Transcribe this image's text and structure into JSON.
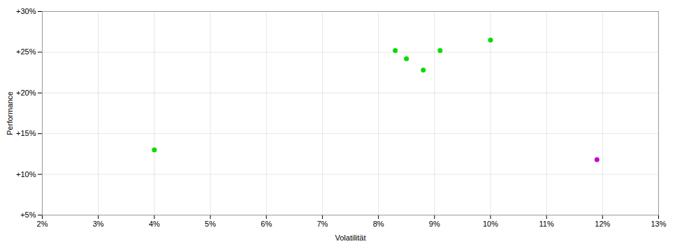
{
  "chart_data": {
    "type": "scatter",
    "xlabel": "Volatilität",
    "ylabel": "Performance",
    "xlim": [
      0.02,
      0.13
    ],
    "ylim": [
      0.05,
      0.3
    ],
    "xticks": [
      {
        "value": 0.02,
        "label": "2%"
      },
      {
        "value": 0.03,
        "label": "3%"
      },
      {
        "value": 0.04,
        "label": "4%"
      },
      {
        "value": 0.05,
        "label": "5%"
      },
      {
        "value": 0.06,
        "label": "6%"
      },
      {
        "value": 0.07,
        "label": "7%"
      },
      {
        "value": 0.08,
        "label": "8%"
      },
      {
        "value": 0.09,
        "label": "9%"
      },
      {
        "value": 0.1,
        "label": "10%"
      },
      {
        "value": 0.11,
        "label": "11%"
      },
      {
        "value": 0.12,
        "label": "12%"
      },
      {
        "value": 0.13,
        "label": "13%"
      }
    ],
    "yticks": [
      {
        "value": 0.05,
        "label": "+5%"
      },
      {
        "value": 0.1,
        "label": "+10%"
      },
      {
        "value": 0.15,
        "label": "+15%"
      },
      {
        "value": 0.2,
        "label": "+20%"
      },
      {
        "value": 0.25,
        "label": "+25%"
      },
      {
        "value": 0.3,
        "label": "+30%"
      }
    ],
    "grid": true,
    "series": [
      {
        "color": "#00dd00",
        "marker": "circle",
        "x": [
          0.04,
          0.083,
          0.085,
          0.088,
          0.091,
          0.1
        ],
        "y": [
          0.13,
          0.252,
          0.242,
          0.228,
          0.252,
          0.265
        ]
      },
      {
        "color": "#cc00cc",
        "marker": "circle",
        "x": [
          0.119
        ],
        "y": [
          0.118
        ]
      }
    ]
  }
}
